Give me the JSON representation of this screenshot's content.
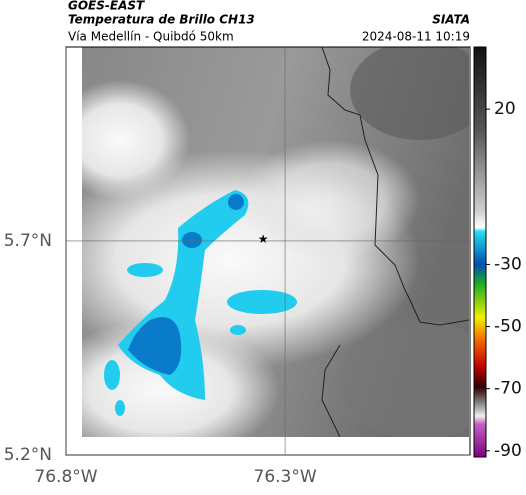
{
  "header": {
    "product": "GOES-EAST",
    "title": "Temperatura de Brillo CH13",
    "brand": "SIATA",
    "subtitle": "Vía Medellín - Quibdó 50km",
    "datetime": "2024-08-11 10:19"
  },
  "map": {
    "xlim": [
      -76.8,
      -75.878
    ],
    "ylim": [
      5.2,
      6.153
    ],
    "xticks": [
      {
        "value": -76.8,
        "label": "76.8°W"
      },
      {
        "value": -76.3,
        "label": "76.3°W"
      }
    ],
    "yticks": [
      {
        "value": 5.7,
        "label": "5.7°N"
      },
      {
        "value": 5.2,
        "label": "5.2°N"
      }
    ],
    "grid": true,
    "marker": {
      "lon": -76.35,
      "lat": 5.703
    }
  },
  "colorbar": {
    "lim": [
      40,
      -92
    ],
    "ticks": [
      20,
      -30,
      -50,
      -70,
      -90
    ]
  }
}
